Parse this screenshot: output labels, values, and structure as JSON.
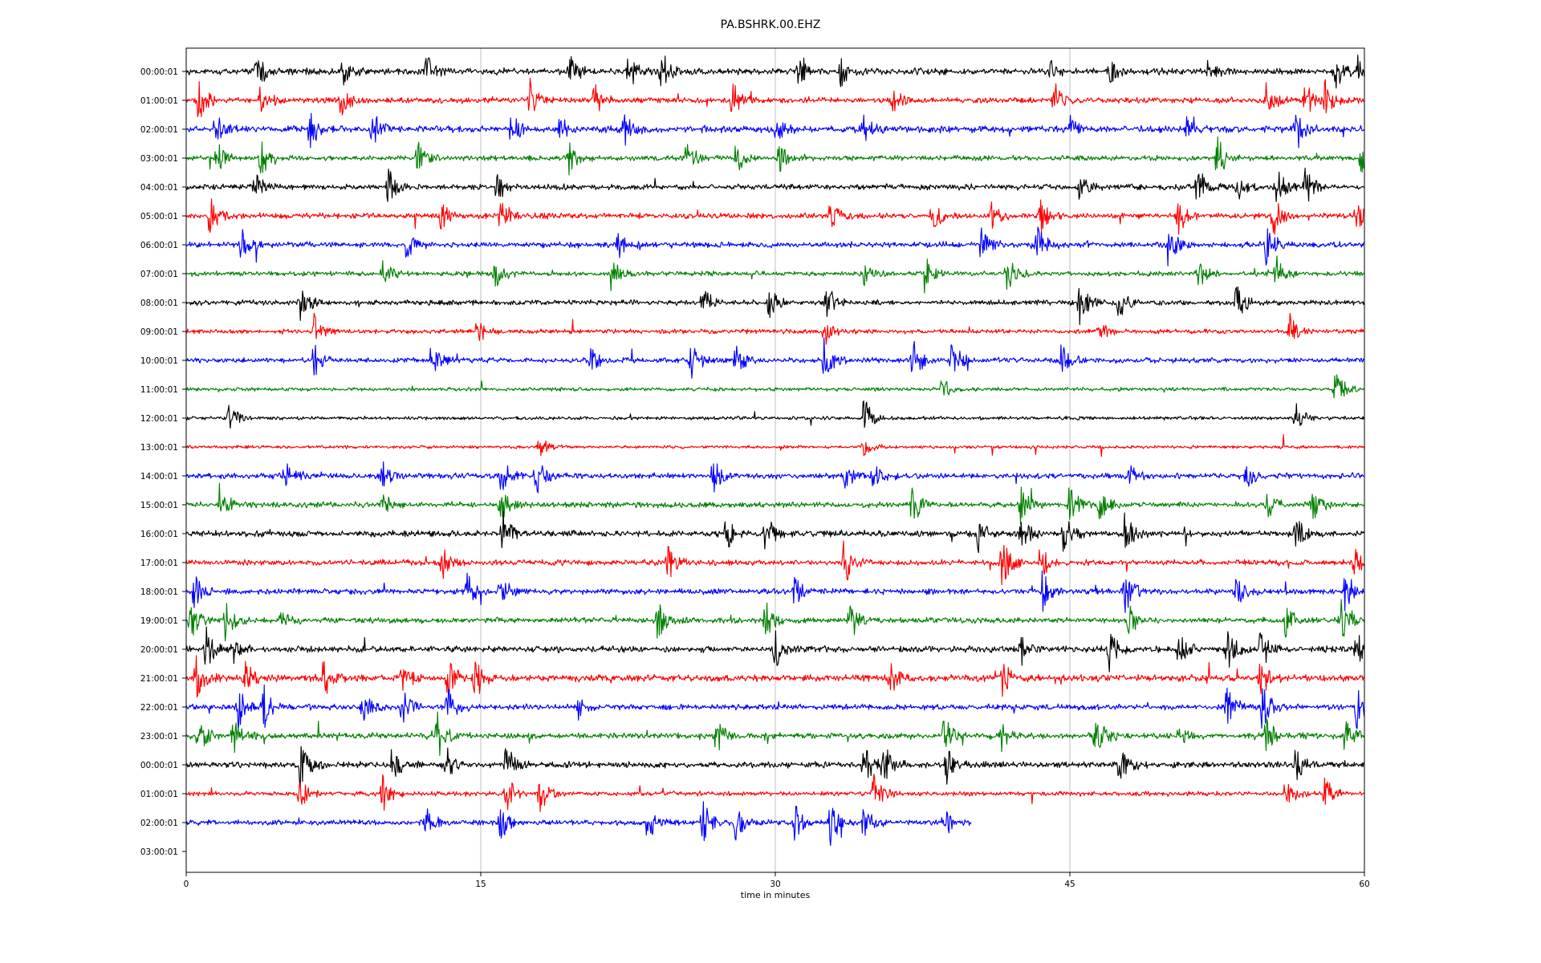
{
  "chart_data": {
    "type": "line",
    "title": "PA.BSHRK.00.EHZ",
    "xlabel": "time in minutes",
    "ylabel": "",
    "xlim": [
      0,
      60
    ],
    "x_ticks": [
      0,
      15,
      30,
      45,
      60
    ],
    "x_tick_labels": [
      "0",
      "15",
      "30",
      "45",
      "60"
    ],
    "grid": "vertical",
    "trace_colors": [
      "#000000",
      "#ff0000",
      "#0000ff",
      "#008000"
    ],
    "rows": [
      {
        "label": "00:00:01",
        "color": "#000000",
        "end_minute": 60,
        "level": 0.62,
        "events": [
          [
            3.6,
            1.0
          ],
          [
            8,
            0.9
          ],
          [
            12.2,
            0.9
          ],
          [
            19.5,
            0.8
          ],
          [
            22.5,
            1.0
          ],
          [
            24.2,
            1.2
          ],
          [
            31.2,
            0.8
          ],
          [
            33.3,
            0.9
          ],
          [
            44,
            0.5
          ],
          [
            47,
            0.6
          ],
          [
            52,
            0.5
          ],
          [
            58.5,
            1.0
          ],
          [
            59.7,
            1.0
          ]
        ]
      },
      {
        "label": "01:00:01",
        "color": "#ff0000",
        "end_minute": 60,
        "level": 0.55,
        "events": [
          [
            0.6,
            1.2
          ],
          [
            3.8,
            1.0
          ],
          [
            7.9,
            0.9
          ],
          [
            17.5,
            1.0
          ],
          [
            20.8,
            1.0
          ],
          [
            27.8,
            1.0
          ],
          [
            36,
            0.6
          ],
          [
            44.2,
            1.0
          ],
          [
            55,
            0.9
          ],
          [
            57,
            1.0
          ],
          [
            58,
            1.0
          ]
        ]
      },
      {
        "label": "02:00:01",
        "color": "#0000ff",
        "end_minute": 60,
        "level": 0.65,
        "events": [
          [
            1.5,
            0.9
          ],
          [
            6.3,
            1.0
          ],
          [
            9.5,
            1.0
          ],
          [
            16.5,
            0.8
          ],
          [
            19,
            0.8
          ],
          [
            22.3,
            0.8
          ],
          [
            30,
            0.8
          ],
          [
            34.5,
            0.6
          ],
          [
            45,
            0.6
          ],
          [
            51,
            0.7
          ],
          [
            56.5,
            1.2
          ]
        ]
      },
      {
        "label": "03:00:01",
        "color": "#008000",
        "end_minute": 60,
        "level": 0.5,
        "events": [
          [
            1.5,
            1.0
          ],
          [
            3.8,
            1.0
          ],
          [
            11.8,
            0.8
          ],
          [
            19.5,
            0.8
          ],
          [
            25.5,
            1.0
          ],
          [
            28,
            0.8
          ],
          [
            30.2,
            0.7
          ],
          [
            52.5,
            1.2
          ],
          [
            59.8,
            1.0
          ]
        ]
      },
      {
        "label": "04:00:01",
        "color": "#000000",
        "end_minute": 60,
        "level": 0.55,
        "events": [
          [
            3.5,
            0.9
          ],
          [
            10.3,
            0.9
          ],
          [
            15.8,
            0.8
          ],
          [
            45.5,
            0.7
          ],
          [
            51.5,
            1.0
          ],
          [
            53.5,
            1.0
          ],
          [
            55.5,
            1.2
          ],
          [
            57,
            1.0
          ]
        ]
      },
      {
        "label": "05:00:01",
        "color": "#ff0000",
        "end_minute": 60,
        "level": 0.55,
        "events": [
          [
            1.2,
            1.0
          ],
          [
            13,
            0.8
          ],
          [
            16,
            0.9
          ],
          [
            32.8,
            0.7
          ],
          [
            38,
            0.9
          ],
          [
            41,
            0.9
          ],
          [
            43.5,
            0.8
          ],
          [
            50.5,
            1.0
          ],
          [
            55.3,
            1.2
          ],
          [
            59.6,
            0.8
          ]
        ]
      },
      {
        "label": "06:00:01",
        "color": "#0000ff",
        "end_minute": 60,
        "level": 0.55,
        "events": [
          [
            2.8,
            0.8
          ],
          [
            11.2,
            0.8
          ],
          [
            22,
            0.6
          ],
          [
            40.5,
            1.0
          ],
          [
            43.3,
            1.0
          ],
          [
            50,
            1.2
          ],
          [
            55,
            1.0
          ]
        ]
      },
      {
        "label": "07:00:01",
        "color": "#008000",
        "end_minute": 60,
        "level": 0.45,
        "events": [
          [
            10,
            0.8
          ],
          [
            15.7,
            0.9
          ],
          [
            21.6,
            0.8
          ],
          [
            34.5,
            0.6
          ],
          [
            37.6,
            0.9
          ],
          [
            41.8,
            1.0
          ],
          [
            51.5,
            0.8
          ],
          [
            55.5,
            0.9
          ]
        ]
      },
      {
        "label": "08:00:01",
        "color": "#000000",
        "end_minute": 60,
        "level": 0.5,
        "events": [
          [
            5.8,
            0.9
          ],
          [
            26.3,
            0.9
          ],
          [
            29.7,
            0.8
          ],
          [
            32.6,
            0.7
          ],
          [
            45.5,
            1.0
          ],
          [
            47.5,
            1.0
          ],
          [
            53.5,
            0.9
          ]
        ]
      },
      {
        "label": "09:00:01",
        "color": "#ff0000",
        "end_minute": 60,
        "level": 0.45,
        "events": [
          [
            6.5,
            0.8
          ],
          [
            14.8,
            0.7
          ],
          [
            32.5,
            0.7
          ],
          [
            46.5,
            0.5
          ],
          [
            56.2,
            0.9
          ]
        ]
      },
      {
        "label": "10:00:01",
        "color": "#0000ff",
        "end_minute": 60,
        "level": 0.5,
        "events": [
          [
            6.5,
            0.9
          ],
          [
            12.5,
            0.8
          ],
          [
            20.5,
            0.8
          ],
          [
            25.7,
            1.0
          ],
          [
            28,
            1.0
          ],
          [
            32.5,
            1.2
          ],
          [
            37,
            1.2
          ],
          [
            39,
            1.2
          ],
          [
            44.5,
            0.9
          ]
        ]
      },
      {
        "label": "11:00:01",
        "color": "#008000",
        "end_minute": 60,
        "level": 0.35,
        "events": [
          [
            38.5,
            0.6
          ],
          [
            58.5,
            1.1
          ]
        ]
      },
      {
        "label": "12:00:01",
        "color": "#000000",
        "end_minute": 60,
        "level": 0.35,
        "events": [
          [
            2.2,
            0.8
          ],
          [
            34.5,
            1.1
          ],
          [
            56.5,
            0.8
          ]
        ]
      },
      {
        "label": "13:00:01",
        "color": "#ff0000",
        "end_minute": 60,
        "level": 0.3,
        "events": [
          [
            18,
            0.6
          ],
          [
            34.5,
            0.5
          ]
        ]
      },
      {
        "label": "14:00:01",
        "color": "#0000ff",
        "end_minute": 60,
        "level": 0.55,
        "events": [
          [
            5,
            0.9
          ],
          [
            10,
            0.8
          ],
          [
            16,
            1.0
          ],
          [
            17.8,
            1.0
          ],
          [
            26.8,
            0.9
          ],
          [
            33.5,
            0.8
          ],
          [
            35,
            0.9
          ],
          [
            48,
            0.6
          ],
          [
            54,
            0.6
          ]
        ]
      },
      {
        "label": "15:00:01",
        "color": "#008000",
        "end_minute": 60,
        "level": 0.55,
        "events": [
          [
            1.7,
            1.0
          ],
          [
            10,
            0.9
          ],
          [
            16,
            0.9
          ],
          [
            37,
            1.0
          ],
          [
            42.5,
            1.0
          ],
          [
            45,
            1.0
          ],
          [
            46.5,
            0.9
          ],
          [
            55,
            0.8
          ],
          [
            57.3,
            0.9
          ]
        ]
      },
      {
        "label": "16:00:01",
        "color": "#000000",
        "end_minute": 60,
        "level": 0.6,
        "events": [
          [
            16.1,
            1.3
          ],
          [
            27.5,
            0.8
          ],
          [
            29.5,
            0.9
          ],
          [
            40.3,
            1.0
          ],
          [
            42.5,
            1.0
          ],
          [
            44.7,
            1.0
          ],
          [
            47.8,
            1.0
          ],
          [
            56.5,
            0.9
          ]
        ]
      },
      {
        "label": "17:00:01",
        "color": "#ff0000",
        "end_minute": 60,
        "level": 0.55,
        "events": [
          [
            13,
            0.9
          ],
          [
            24.5,
            1.0
          ],
          [
            33.5,
            1.2
          ],
          [
            41.5,
            1.3
          ],
          [
            43.5,
            1.0
          ],
          [
            59.5,
            0.8
          ]
        ]
      },
      {
        "label": "18:00:01",
        "color": "#0000ff",
        "end_minute": 60,
        "level": 0.55,
        "events": [
          [
            0.4,
            1.0
          ],
          [
            14.3,
            1.0
          ],
          [
            16,
            0.8
          ],
          [
            31,
            0.8
          ],
          [
            43.6,
            1.0
          ],
          [
            47.8,
            1.2
          ],
          [
            53.5,
            0.8
          ],
          [
            59,
            1.1
          ]
        ]
      },
      {
        "label": "19:00:01",
        "color": "#008000",
        "end_minute": 60,
        "level": 0.55,
        "events": [
          [
            0.2,
            1.2
          ],
          [
            2,
            1.0
          ],
          [
            4.8,
            1.0
          ],
          [
            24,
            0.9
          ],
          [
            29.5,
            1.0
          ],
          [
            33.8,
            1.0
          ],
          [
            48,
            0.9
          ],
          [
            56,
            0.8
          ],
          [
            58.8,
            1.0
          ]
        ]
      },
      {
        "label": "20:00:01",
        "color": "#000000",
        "end_minute": 60,
        "level": 0.6,
        "events": [
          [
            1,
            1.1
          ],
          [
            2.2,
            1.1
          ],
          [
            30,
            0.9
          ],
          [
            42.5,
            1.0
          ],
          [
            47,
            1.0
          ],
          [
            50.5,
            1.0
          ],
          [
            53,
            1.1
          ],
          [
            54.7,
            1.1
          ],
          [
            59.6,
            1.0
          ]
        ]
      },
      {
        "label": "21:00:01",
        "color": "#ff0000",
        "end_minute": 60,
        "level": 0.65,
        "events": [
          [
            0.5,
            1.0
          ],
          [
            3,
            1.0
          ],
          [
            7,
            1.0
          ],
          [
            11,
            1.0
          ],
          [
            13.3,
            1.1
          ],
          [
            14.7,
            1.3
          ],
          [
            35.8,
            1.0
          ],
          [
            41.5,
            1.0
          ],
          [
            54.7,
            0.9
          ]
        ]
      },
      {
        "label": "22:00:01",
        "color": "#0000ff",
        "end_minute": 60,
        "level": 0.55,
        "events": [
          [
            2.6,
            1.1
          ],
          [
            3.9,
            1.2
          ],
          [
            9,
            0.9
          ],
          [
            11,
            1.0
          ],
          [
            13.3,
            1.0
          ],
          [
            20,
            0.7
          ],
          [
            53,
            1.0
          ],
          [
            54.8,
            1.2
          ],
          [
            59.6,
            1.0
          ]
        ]
      },
      {
        "label": "23:00:01",
        "color": "#008000",
        "end_minute": 60,
        "level": 0.6,
        "events": [
          [
            0.6,
            1.0
          ],
          [
            2.4,
            0.9
          ],
          [
            12.8,
            1.2
          ],
          [
            27,
            0.9
          ],
          [
            38.6,
            1.0
          ],
          [
            41.5,
            0.8
          ],
          [
            46.3,
            1.0
          ],
          [
            50.5,
            0.9
          ],
          [
            55,
            0.9
          ],
          [
            59,
            0.9
          ]
        ]
      },
      {
        "label": "00:00:01",
        "color": "#000000",
        "end_minute": 60,
        "level": 0.6,
        "events": [
          [
            5.8,
            1.0
          ],
          [
            10.5,
            1.0
          ],
          [
            13.2,
            1.0
          ],
          [
            16.3,
            1.0
          ],
          [
            34.5,
            1.2
          ],
          [
            35.5,
            1.2
          ],
          [
            38.7,
            1.1
          ],
          [
            47.5,
            1.0
          ],
          [
            56.5,
            0.9
          ]
        ]
      },
      {
        "label": "01:00:01",
        "color": "#ff0000",
        "end_minute": 60,
        "level": 0.45,
        "events": [
          [
            5.8,
            0.8
          ],
          [
            10,
            0.9
          ],
          [
            16.3,
            1.0
          ],
          [
            18,
            0.9
          ],
          [
            35,
            1.0
          ],
          [
            56,
            0.8
          ],
          [
            58,
            0.9
          ]
        ]
      },
      {
        "label": "02:00:01",
        "color": "#0000ff",
        "end_minute": 40,
        "level": 0.5,
        "events": [
          [
            12.2,
            0.8
          ],
          [
            16,
            0.9
          ],
          [
            23.5,
            1.0
          ],
          [
            26.3,
            1.1
          ],
          [
            28,
            1.0
          ],
          [
            31,
            0.9
          ],
          [
            32.8,
            1.1
          ],
          [
            34.5,
            0.9
          ],
          [
            38.6,
            1.0
          ]
        ]
      },
      {
        "label": "03:00:01",
        "color": "#000000",
        "end_minute": 0,
        "level": 0,
        "events": []
      }
    ]
  }
}
